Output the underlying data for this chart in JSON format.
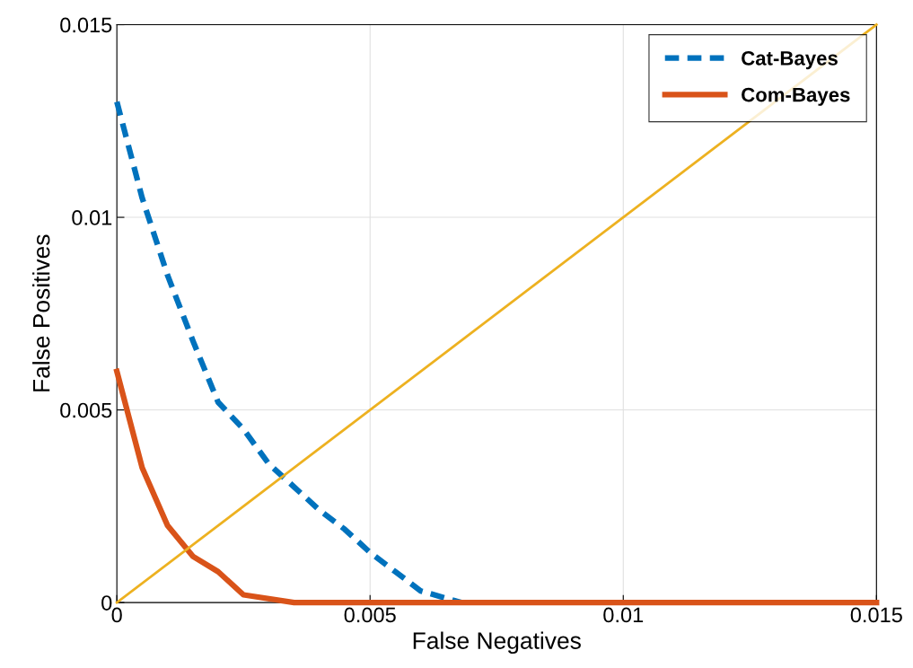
{
  "chart_data": {
    "type": "line",
    "xlabel": "False Negatives",
    "ylabel": "False Positives",
    "xlim": [
      0,
      0.015
    ],
    "ylim": [
      0,
      0.015
    ],
    "xticks": [
      0,
      0.005,
      0.01,
      0.015
    ],
    "yticks": [
      0,
      0.005,
      0.01,
      0.015
    ],
    "grid": true,
    "legend": "top right",
    "marker": "none",
    "series": [
      {
        "name": "Cat-Bayes",
        "color": "#0072bd",
        "line_style": "dashed",
        "x": [
          0,
          0.0005,
          0.001,
          0.0015,
          0.002,
          0.0025,
          0.003,
          0.0035,
          0.004,
          0.0045,
          0.005,
          0.0055,
          0.006,
          0.0068
        ],
        "values": [
          0.013,
          0.0105,
          0.0085,
          0.0068,
          0.0052,
          0.0045,
          0.0036,
          0.003,
          0.0024,
          0.0019,
          0.0013,
          0.0008,
          0.0003,
          0
        ]
      },
      {
        "name": "Com-Bayes",
        "color": "#d95319",
        "line_style": "solid",
        "x": [
          0,
          0.0005,
          0.001,
          0.0015,
          0.002,
          0.0025,
          0.0035,
          0.015
        ],
        "values": [
          0.006,
          0.0035,
          0.002,
          0.0012,
          0.0008,
          0.0002,
          0,
          0
        ]
      },
      {
        "color": "#edb120",
        "line_style": "solid",
        "x": [
          0,
          0.015
        ],
        "values": [
          0,
          0.015
        ]
      }
    ]
  }
}
